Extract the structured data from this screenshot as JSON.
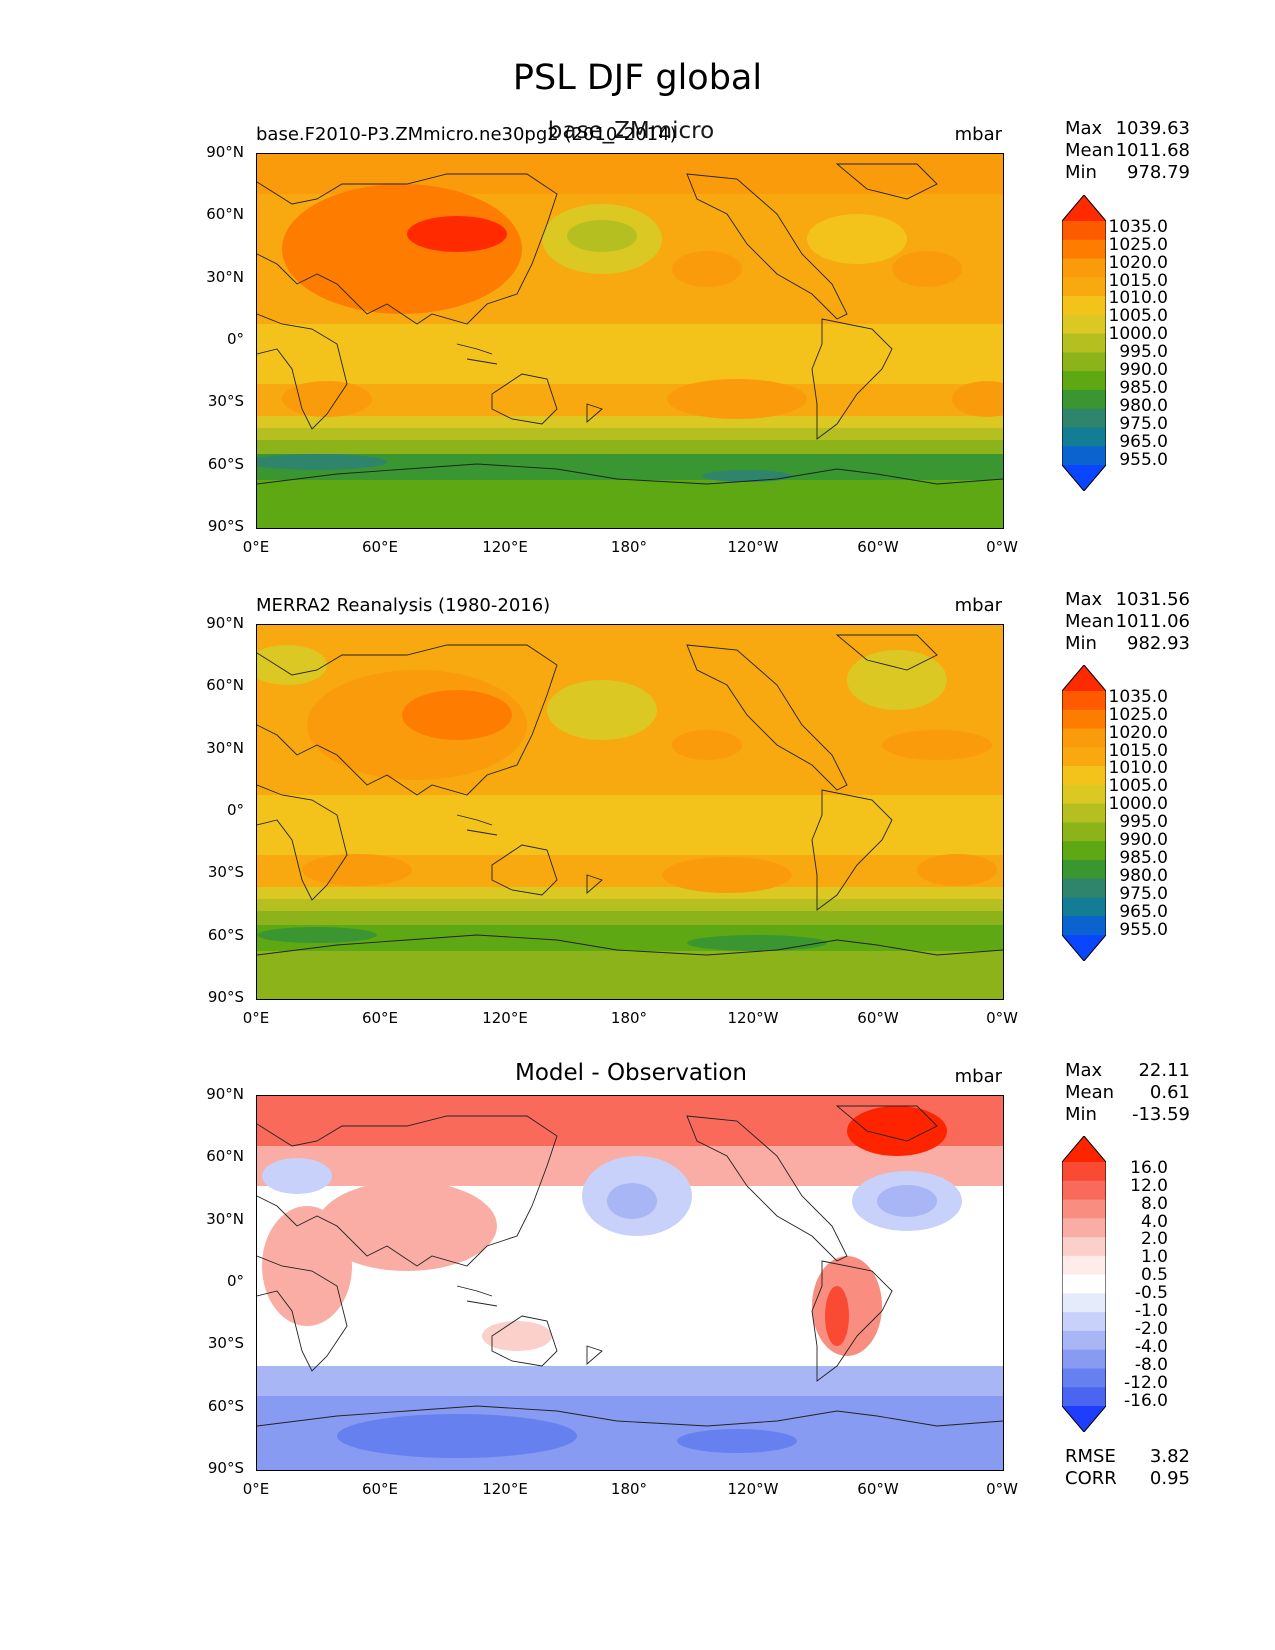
{
  "figure": {
    "title": "PSL DJF global"
  },
  "axes": {
    "lat_labels": [
      "90°N",
      "60°N",
      "30°N",
      "0°",
      "30°S",
      "60°S",
      "90°S"
    ],
    "lon_labels": [
      "0°E",
      "60°E",
      "120°E",
      "180°",
      "120°W",
      "60°W",
      "0°W"
    ]
  },
  "panels": [
    {
      "id": "test",
      "left_title": "base.F2010-P3.ZMmicro.ne30pg2 (2010-2014)",
      "center_title": "base_ZMmicro",
      "units": "mbar",
      "stats": {
        "max_label": "Max",
        "max": "1039.63",
        "mean_label": "Mean",
        "mean": "1011.68",
        "min_label": "Min",
        "min": "978.79"
      },
      "colorbar_labels": [
        "1035.0",
        "1025.0",
        "1020.0",
        "1015.0",
        "1010.0",
        "1005.0",
        "1000.0",
        "995.0",
        "990.0",
        "985.0",
        "980.0",
        "975.0",
        "965.0",
        "955.0"
      ]
    },
    {
      "id": "ref",
      "left_title": "MERRA2 Reanalysis (1980-2016)",
      "units": "mbar",
      "stats": {
        "max_label": "Max",
        "max": "1031.56",
        "mean_label": "Mean",
        "mean": "1011.06",
        "min_label": "Min",
        "min": "982.93"
      },
      "colorbar_labels": [
        "1035.0",
        "1025.0",
        "1020.0",
        "1015.0",
        "1010.0",
        "1005.0",
        "1000.0",
        "995.0",
        "990.0",
        "985.0",
        "980.0",
        "975.0",
        "965.0",
        "955.0"
      ]
    },
    {
      "id": "diff",
      "center_title": "Model - Observation",
      "units": "mbar",
      "stats": {
        "max_label": "Max",
        "max": "22.11",
        "mean_label": "Mean",
        "mean": "0.61",
        "min_label": "Min",
        "min": "-13.59"
      },
      "colorbar_labels": [
        "16.0",
        "12.0",
        "8.0",
        "4.0",
        "2.0",
        "1.0",
        "0.5",
        "-0.5",
        "-1.0",
        "-2.0",
        "-4.0",
        "-8.0",
        "-12.0",
        "-16.0"
      ],
      "metrics": {
        "rmse_label": "RMSE",
        "rmse": "3.82",
        "corr_label": "CORR",
        "corr": "0.95"
      }
    }
  ],
  "colors": {
    "abs_scale": [
      "#ff2a00",
      "#fe5a00",
      "#fe7d00",
      "#fa9b0c",
      "#f8a910",
      "#f3c31b",
      "#dcc822",
      "#b5c020",
      "#8db31a",
      "#5ea814",
      "#3a9630",
      "#2f856c",
      "#137d95",
      "#0b63d0",
      "#0a45ff"
    ],
    "diff_scale": [
      "#ff2400",
      "#f94a33",
      "#f96a5a",
      "#f88d80",
      "#f9ada4",
      "#fbcfca",
      "#feeceb",
      "#ffffff",
      "#e6ebfc",
      "#c7d1f9",
      "#a8b6f6",
      "#879bf2",
      "#6681ef",
      "#4a66f0",
      "#1f3dff"
    ],
    "coastline": "#222222"
  }
}
